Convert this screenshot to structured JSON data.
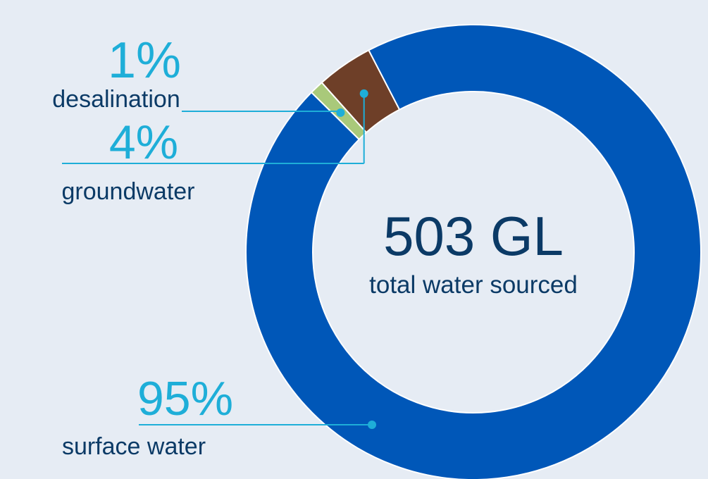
{
  "chart_data": {
    "type": "pie",
    "categories": [
      "surface water",
      "groundwater",
      "desalination"
    ],
    "values": [
      95,
      4,
      1
    ],
    "value_labels": [
      "95%",
      "4%",
      "1%"
    ],
    "colors": [
      "#0057b8",
      "#6e3f28",
      "#a9c97a"
    ],
    "center_value": "503 GL",
    "center_label": "total water sourced",
    "legend": "none",
    "label_color": "#1eaed8",
    "text_color": "#0b3a66",
    "background": "#e6ecf4"
  }
}
